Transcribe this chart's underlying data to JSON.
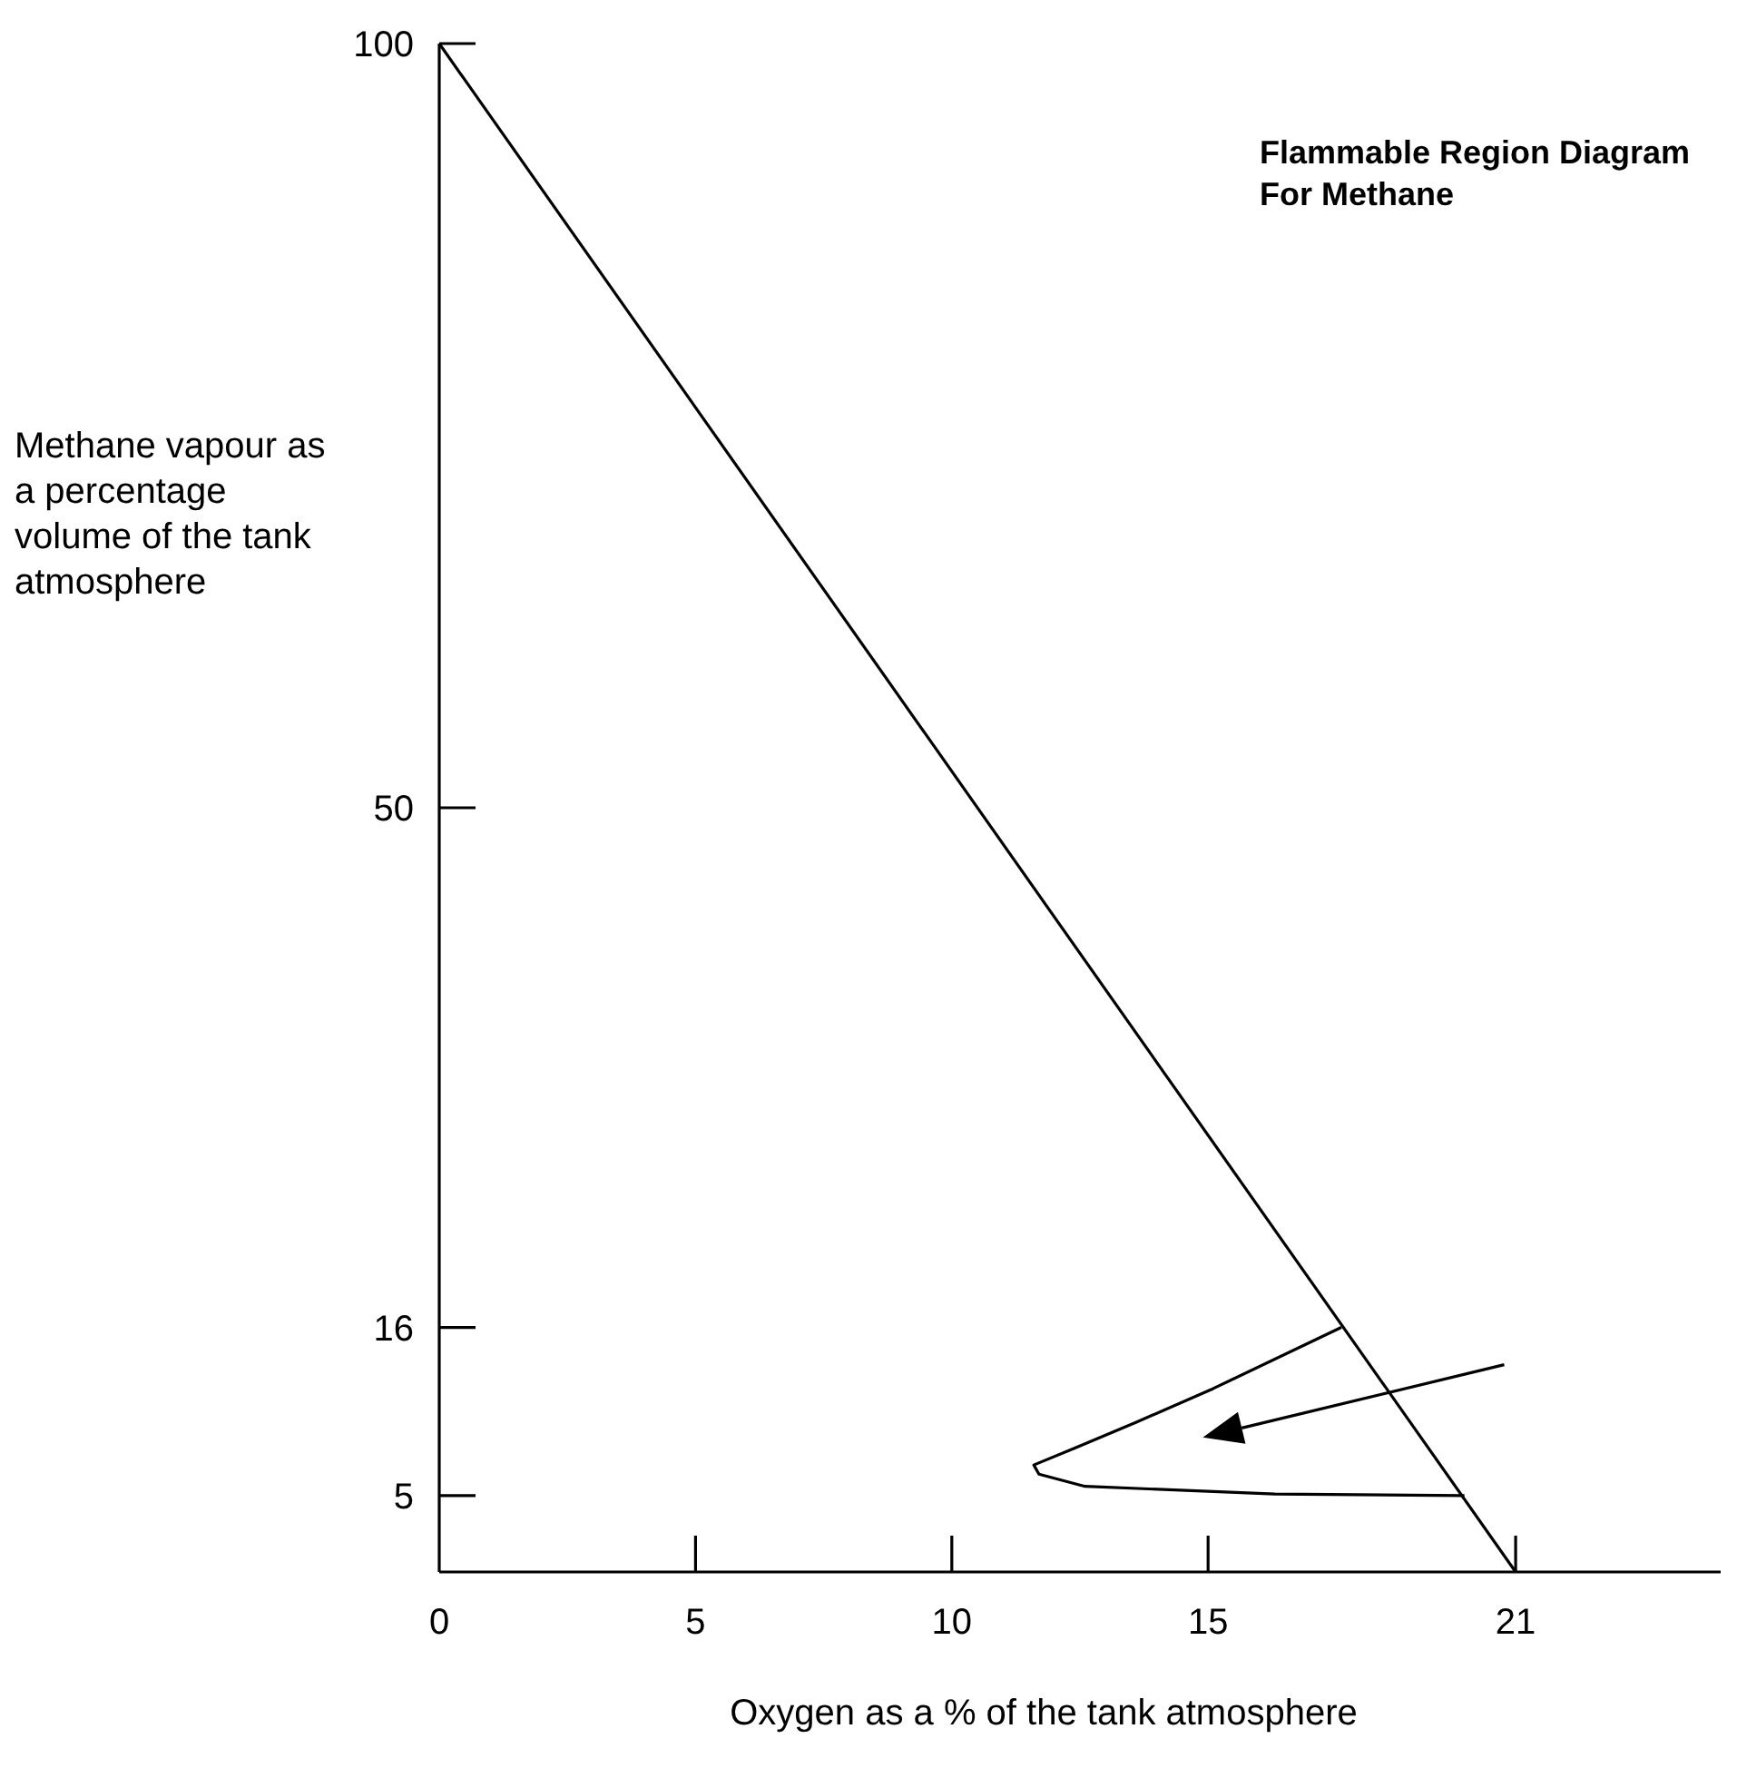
{
  "chart_data": {
    "type": "line",
    "title": "Flammable Region Diagram\nFor Methane",
    "xlabel": "Oxygen as a % of the tank atmosphere",
    "ylabel": "Methane vapour as\na percentage\nvolume of the tank\natmosphere",
    "xlim": [
      0,
      25
    ],
    "ylim": [
      0,
      100
    ],
    "xticks": [
      0,
      5,
      10,
      15,
      21
    ],
    "yticks": [
      5,
      16,
      50,
      100
    ],
    "grid": false,
    "marker": "none",
    "line_style": "solid",
    "series": [
      {
        "color": "#000000",
        "x": [
          0,
          21
        ],
        "values": [
          100,
          0
        ]
      },
      {
        "color": "#000000",
        "x": [
          17.6,
          15.1,
          13.6,
          12.4,
          11.6,
          11.7,
          12.6,
          16.3,
          20
        ],
        "values": [
          16,
          12,
          9.8,
          8.1,
          7,
          6.4,
          5.6,
          5.1,
          5
        ]
      }
    ]
  }
}
